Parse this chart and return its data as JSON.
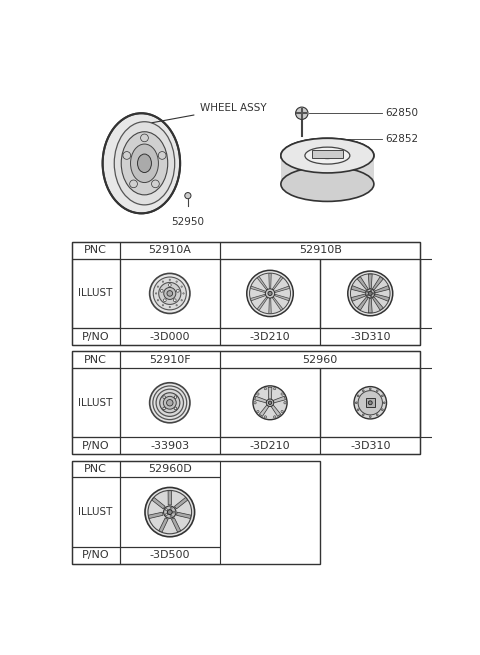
{
  "bg_color": "#ffffff",
  "part_labels": {
    "wheel_assy": "WHEEL ASSY",
    "p52950": "52950",
    "p62850": "62850",
    "p62852": "62852"
  },
  "table1_pnc": [
    "PNC",
    "52910A",
    "52910B"
  ],
  "table1_pno": [
    "P/NO",
    "-3D000",
    "-3D210",
    "-3D310"
  ],
  "table2_pnc": [
    "PNC",
    "52910F",
    "52960"
  ],
  "table2_pno": [
    "P/NO",
    "-33903",
    "-3D210",
    "-3D310"
  ],
  "table3_pnc": [
    "PNC",
    "52960D"
  ],
  "table3_pno": [
    "P/NO",
    "-3D500"
  ],
  "lc": "#555555",
  "tc": "#333333"
}
